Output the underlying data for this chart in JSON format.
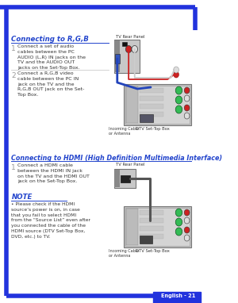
{
  "bg_color": "#ffffff",
  "border_color": "#2233dd",
  "page_label": "English - 21",
  "section1_title": "Connecting to R,G,B",
  "section1_step1_num": "1",
  "section1_step1_text": "Connect a set of audio\ncables between the PC\nAUDIO (L,R) IN jacks on the\nTV and the AUDIO OUT\njacks on the Set-Top Box.",
  "section1_step2_num": "2",
  "section1_step2_text": "Connect a R,G,B video\ncable between the PC IN\njack on the TV and the\nR,G,B OUT jack on the Set-\nTop Box.",
  "section1_tv_label": "TV Rear Panel",
  "section1_stb_label": "DTV Set-Top Box",
  "section1_cable_label": "Incoming Cable\nor Antenna",
  "section2_title": "Connecting to HDMI (High Definition Multimedia Interface)",
  "section2_step1_num": "1",
  "section2_step1_text": "Connect a HDMI cable\nbetween the HDMI IN jack\non the TV and the HDMI OUT\njack on the Set-Top Box.",
  "section2_tv_label": "TV Rear Panel",
  "section2_stb_label": "DTV Set-Top Box",
  "section2_cable_label": "Incoming Cable\nor Antenna",
  "note_title": "NOTE",
  "note_text": "• Please check if the HDMI\nsource’s power is on, in case\nthat you fail to select HDMI\nfrom the “Source List” even after\nyou connected the cable of the\nHDMI source (DTV Set-Top Box,\nDVD, etc.) to TV.",
  "title_color": "#2244cc",
  "text_color": "#333333",
  "gray_num_color": "#999999",
  "blue_color": "#2244cc"
}
